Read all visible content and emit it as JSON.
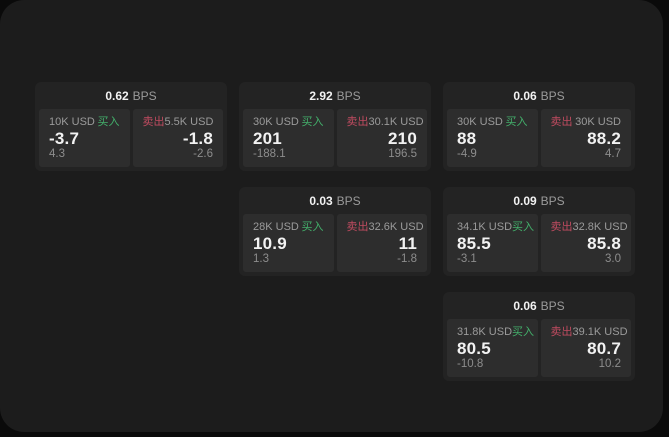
{
  "labels": {
    "bps_unit": "BPS",
    "buy": "买入",
    "sell": "卖出"
  },
  "colors": {
    "buy_accent": "#43b06b",
    "sell_accent": "#c04b60",
    "page_background": "#1c1c1c",
    "card_background": "#232323",
    "panel_background": "#2d2d2d"
  },
  "cards": [
    {
      "col": 1,
      "row": 1,
      "bps": "0.62",
      "buy": {
        "amount": "10K USD",
        "price": "-3.7",
        "delta": "4.3"
      },
      "sell": {
        "amount": "5.5K USD",
        "price": "-1.8",
        "delta": "-2.6"
      }
    },
    {
      "col": 2,
      "row": 1,
      "bps": "2.92",
      "buy": {
        "amount": "30K USD",
        "price": "201",
        "delta": "-188.1"
      },
      "sell": {
        "amount": "30.1K USD",
        "price": "210",
        "delta": "196.5"
      }
    },
    {
      "col": 3,
      "row": 1,
      "bps": "0.06",
      "buy": {
        "amount": "30K USD",
        "price": "88",
        "delta": "-4.9"
      },
      "sell": {
        "amount": "30K USD",
        "price": "88.2",
        "delta": "4.7"
      }
    },
    {
      "col": 2,
      "row": 2,
      "bps": "0.03",
      "buy": {
        "amount": "28K USD",
        "price": "10.9",
        "delta": "1.3"
      },
      "sell": {
        "amount": "32.6K USD",
        "price": "11",
        "delta": "-1.8"
      }
    },
    {
      "col": 3,
      "row": 2,
      "bps": "0.09",
      "buy": {
        "amount": "34.1K USD",
        "price": "85.5",
        "delta": "-3.1"
      },
      "sell": {
        "amount": "32.8K USD",
        "price": "85.8",
        "delta": "3.0"
      }
    },
    {
      "col": 3,
      "row": 3,
      "bps": "0.06",
      "buy": {
        "amount": "31.8K USD",
        "price": "80.5",
        "delta": "-10.8"
      },
      "sell": {
        "amount": "39.1K USD",
        "price": "80.7",
        "delta": "10.2"
      }
    }
  ]
}
